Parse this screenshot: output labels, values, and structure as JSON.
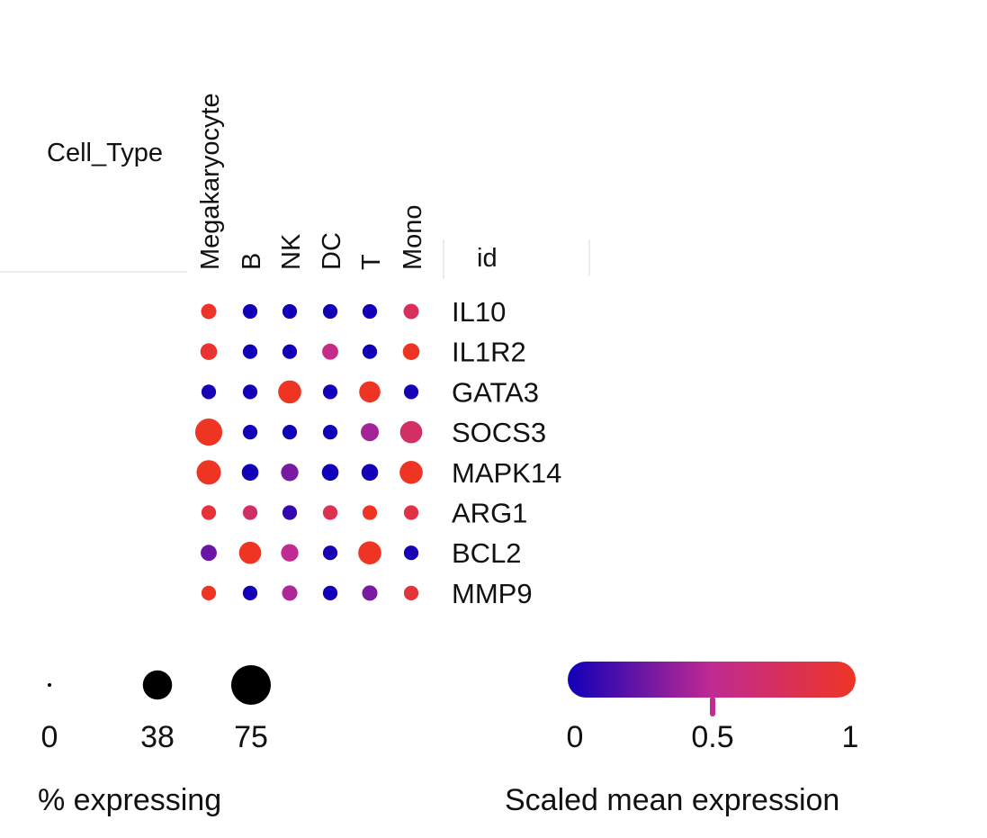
{
  "chart_data": {
    "type": "dotplot",
    "column_group_label": "Cell_Type",
    "row_group_label": "id",
    "columns": [
      "Megakaryocyte",
      "B",
      "NK",
      "DC",
      "T",
      "Mono"
    ],
    "rows": [
      "IL10",
      "IL1R2",
      "GATA3",
      "SOCS3",
      "MAPK14",
      "ARG1",
      "BCL2",
      "MMP9"
    ],
    "pct_expressing": [
      [
        8,
        7,
        7,
        7,
        7,
        8
      ],
      [
        10,
        7,
        7,
        9,
        7,
        10
      ],
      [
        7,
        7,
        22,
        7,
        18,
        7
      ],
      [
        32,
        7,
        7,
        7,
        12,
        20
      ],
      [
        25,
        10,
        11,
        10,
        10,
        22
      ],
      [
        7,
        7,
        7,
        7,
        7,
        7
      ],
      [
        9,
        20,
        11,
        7,
        22,
        7
      ],
      [
        7,
        7,
        8,
        7,
        8,
        7
      ]
    ],
    "scaled_expression": [
      [
        0.98,
        0.0,
        0.0,
        0.0,
        0.0,
        0.75
      ],
      [
        0.95,
        0.0,
        0.0,
        0.55,
        0.0,
        1.0
      ],
      [
        0.02,
        0.0,
        1.0,
        0.0,
        1.0,
        0.02
      ],
      [
        1.0,
        0.0,
        0.0,
        0.0,
        0.42,
        0.72
      ],
      [
        1.0,
        0.0,
        0.3,
        0.0,
        0.0,
        1.0
      ],
      [
        0.9,
        0.7,
        0.1,
        0.8,
        1.0,
        0.85
      ],
      [
        0.25,
        1.0,
        0.5,
        0.02,
        1.0,
        0.02
      ],
      [
        1.0,
        0.0,
        0.45,
        0.0,
        0.3,
        0.9
      ]
    ],
    "size_legend": {
      "title": "% expressing",
      "values": [
        0,
        38,
        75
      ],
      "labels": [
        "0",
        "38",
        "75"
      ]
    },
    "color_legend": {
      "title": "Scaled mean expression",
      "ticks": [
        0,
        0.5,
        1
      ],
      "labels": [
        "0",
        "0.5",
        "1"
      ],
      "colors": [
        "#1100b8",
        "#c02a92",
        "#ee3524"
      ]
    }
  }
}
